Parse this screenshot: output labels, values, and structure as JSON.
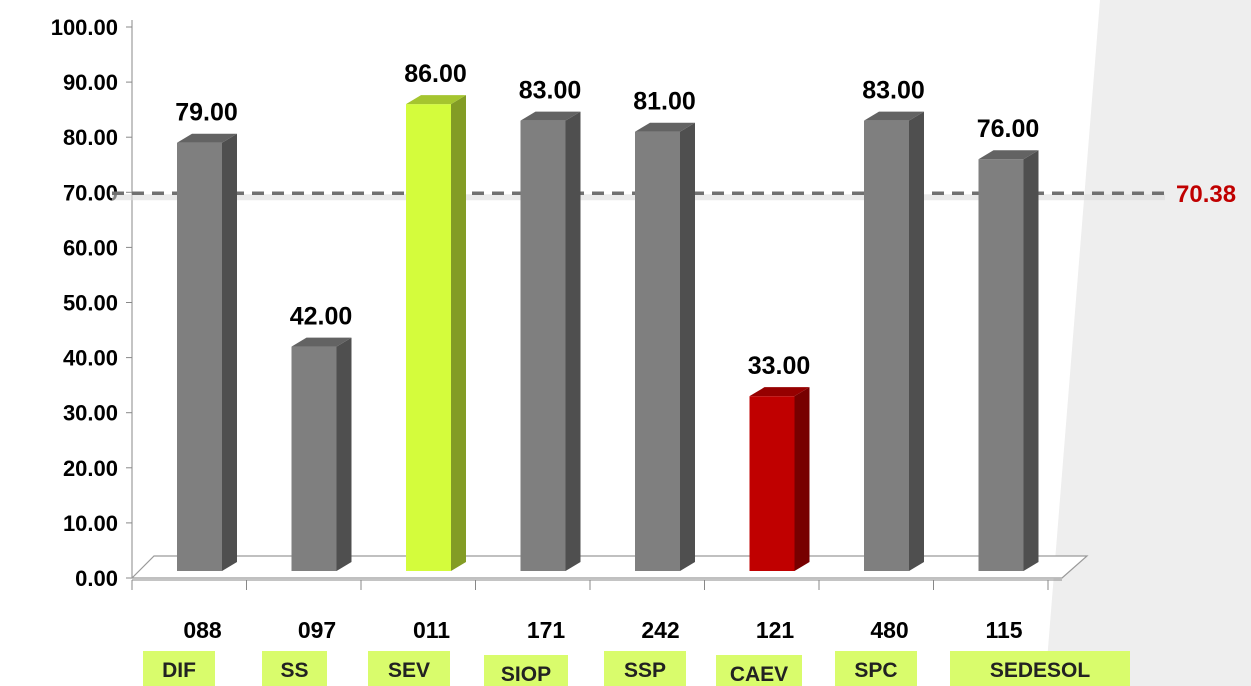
{
  "chart_data": {
    "type": "bar",
    "categories": [
      "DIF",
      "SS",
      "SEV",
      "SIOP",
      "SSP",
      "CAEV",
      "SPC",
      "SEDESOL"
    ],
    "codes": [
      "088",
      "097",
      "011",
      "171",
      "242",
      "121",
      "480",
      "115"
    ],
    "values": [
      79,
      42,
      86,
      83,
      81,
      33,
      83,
      76
    ],
    "value_labels": [
      "79.00",
      "42.00",
      "86.00",
      "83.00",
      "81.00",
      "33.00",
      "83.00",
      "76.00"
    ],
    "bar_colors": [
      "#7f7f7f",
      "#7f7f7f",
      "#d4fc3c",
      "#7f7f7f",
      "#7f7f7f",
      "#c00000",
      "#7f7f7f",
      "#7f7f7f"
    ],
    "y_ticks": [
      "0.00",
      "10.00",
      "20.00",
      "30.00",
      "40.00",
      "50.00",
      "60.00",
      "70.00",
      "80.00",
      "90.00",
      "100.00"
    ],
    "ylim": [
      0,
      100
    ],
    "reference_line": {
      "value": 70.38,
      "label": "70.38",
      "color": "#c00000",
      "style": "dashed"
    },
    "category_box_color": "#d9fc6c",
    "title": "",
    "xlabel": "",
    "ylabel": "",
    "grid": false,
    "legend": "none",
    "three_d": true
  }
}
